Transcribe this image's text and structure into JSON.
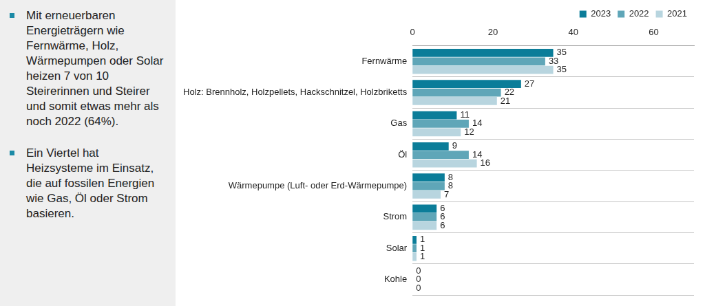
{
  "sidebar": {
    "bullets": [
      "Mit erneuerbaren Energieträgern wie Fernwärme, Holz, Wärmepumpen oder Solar heizen 7 von 10 Steirerinnen und Steirer und somit etwas mehr als noch 2022 (64%).",
      "Ein Viertel hat Heizsysteme im Einsatz, die auf fossilen Energien wie Gas, Öl oder Strom basieren."
    ]
  },
  "chart_data": {
    "type": "bar",
    "orientation": "horizontal",
    "categories": [
      "Fernwärme",
      "Holz: Brennholz, Holzpellets, Hackschnitzel, Holzbriketts",
      "Gas",
      "Öl",
      "Wärmepumpe (Luft- oder Erd-Wärmepumpe)",
      "Strom",
      "Solar",
      "Kohle"
    ],
    "series": [
      {
        "name": "2023",
        "color": "#0b7d99",
        "values": [
          35,
          27,
          11,
          9,
          8,
          6,
          1,
          0
        ]
      },
      {
        "name": "2022",
        "color": "#5fa6b8",
        "values": [
          33,
          22,
          14,
          14,
          8,
          6,
          1,
          0
        ]
      },
      {
        "name": "2021",
        "color": "#b8d5df",
        "values": [
          35,
          21,
          12,
          16,
          7,
          6,
          1,
          0
        ]
      }
    ],
    "xlim": [
      0,
      70
    ],
    "xticks": [
      0,
      20,
      40,
      60
    ],
    "grid": false,
    "legend": "top-right",
    "data_labels": true
  }
}
